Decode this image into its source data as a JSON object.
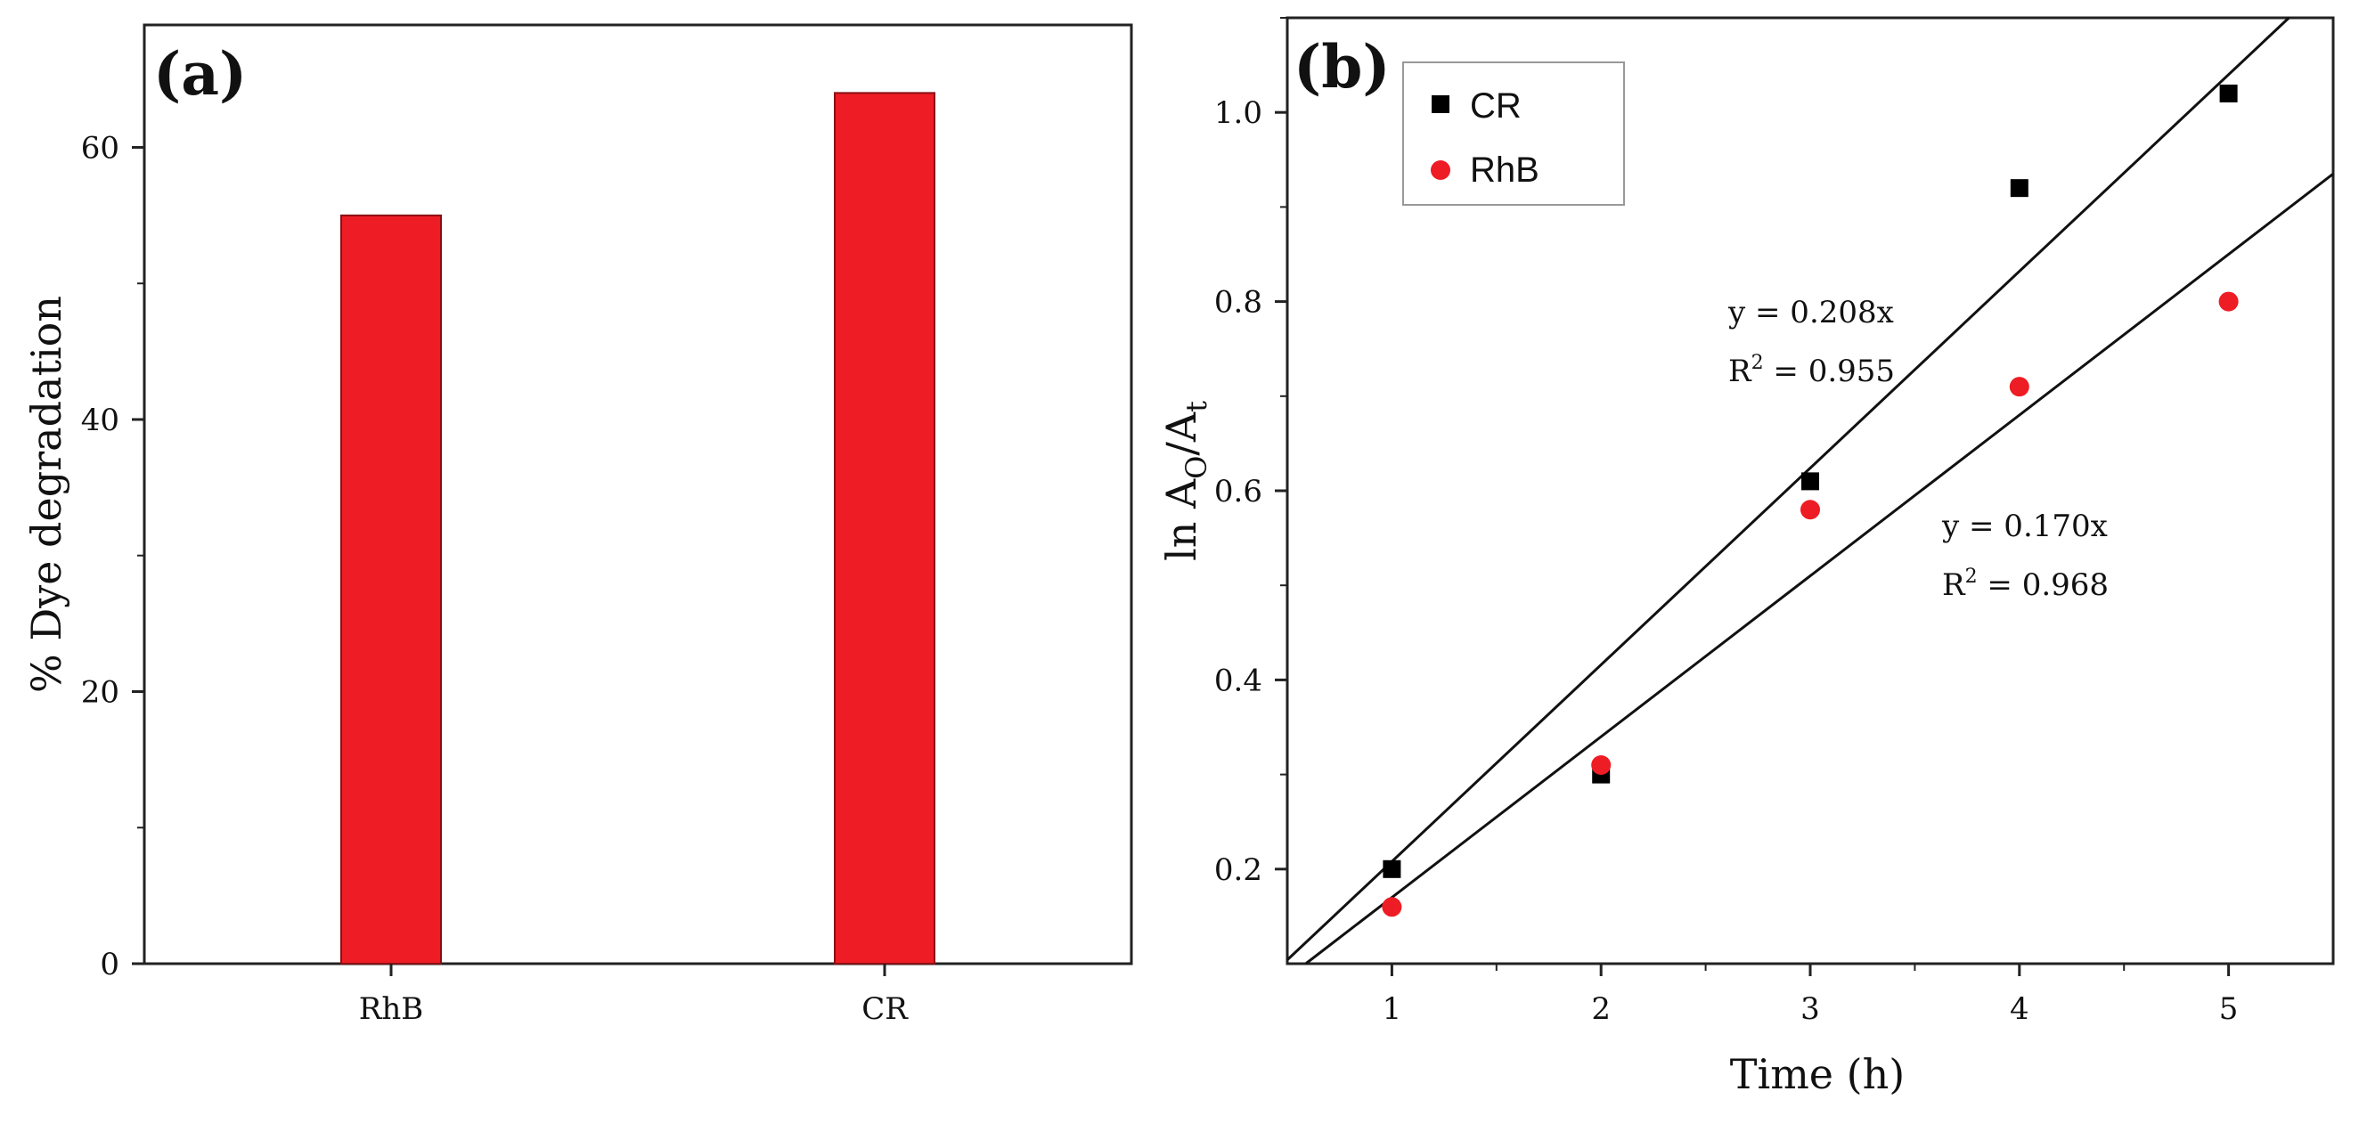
{
  "chart_data": [
    {
      "panel": "(a)",
      "type": "bar",
      "title": "",
      "xlabel": "",
      "ylabel": "% Dye degradation",
      "categories": [
        "RhB",
        "CR"
      ],
      "values": [
        55,
        64
      ],
      "ylim": [
        0,
        69
      ],
      "yticks": [
        0,
        20,
        40,
        60
      ],
      "ytick_labels": [
        "0",
        "20",
        "40",
        "60"
      ],
      "bar_color": "#ee1c24",
      "grid": false
    },
    {
      "panel": "(b)",
      "type": "scatter",
      "title": "",
      "xlabel": "Time (h)",
      "ylabel_main": "ln A",
      "ylabel_sub_1": "O",
      "ylabel_slash": "/A",
      "ylabel_sub_2": "t",
      "xlim": [
        0.5,
        5.5
      ],
      "ylim": [
        0.1,
        1.1
      ],
      "xticks": [
        1,
        2,
        3,
        4,
        5
      ],
      "xtick_labels": [
        "1",
        "2",
        "3",
        "4",
        "5"
      ],
      "yticks": [
        0.2,
        0.4,
        0.6,
        0.8,
        1.0
      ],
      "ytick_labels": [
        "0.2",
        "0.4",
        "0.6",
        "0.8",
        "1.0"
      ],
      "grid": false,
      "legend_position": "top-left",
      "series": [
        {
          "name": "CR",
          "marker": "square",
          "color": "#000000",
          "x": [
            1,
            2,
            3,
            4,
            5
          ],
          "y": [
            0.2,
            0.3,
            0.61,
            0.92,
            1.02
          ],
          "fit": {
            "slope": 0.208,
            "intercept": 0.0,
            "equation": "y = 0.208x",
            "r2_prefix": "R",
            "r2_sup": "2",
            "r2_value": " = 0.955"
          }
        },
        {
          "name": "RhB",
          "marker": "circle",
          "color": "#ee1c24",
          "x": [
            1,
            2,
            3,
            4,
            5
          ],
          "y": [
            0.16,
            0.31,
            0.58,
            0.71,
            0.8
          ],
          "fit": {
            "slope": 0.17,
            "intercept": 0.0,
            "equation": "y = 0.170x",
            "r2_prefix": "R",
            "r2_sup": "2",
            "r2_value": " = 0.968"
          }
        }
      ]
    }
  ]
}
